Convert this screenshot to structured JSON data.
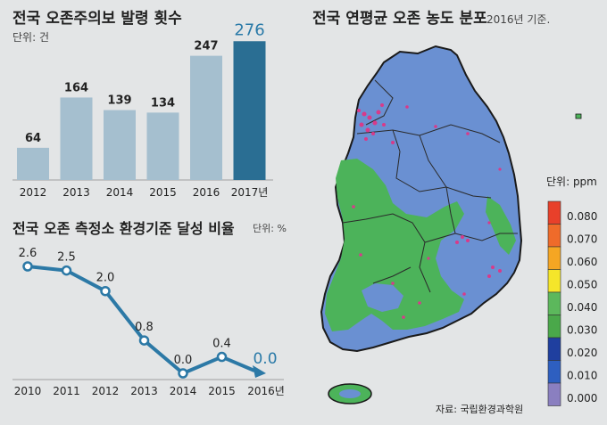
{
  "bar_panel": {
    "title": "전국 오존주의보 발령 횟수",
    "unit": "단위: 건"
  },
  "line_panel": {
    "title": "전국 오존 측정소 환경기준 달성 비율",
    "unit": "단위: %"
  },
  "map_panel": {
    "title": "전국 연평균 오존 농도 분포",
    "subtitle": "2016년 기준.",
    "legend_title": "단위: ppm",
    "legend": [
      {
        "label": "0.080",
        "color": "#e8402a"
      },
      {
        "label": "0.070",
        "color": "#ef6b2a"
      },
      {
        "label": "0.060",
        "color": "#f5a623"
      },
      {
        "label": "0.050",
        "color": "#f5e62a"
      },
      {
        "label": "0.040",
        "color": "#5cb85c"
      },
      {
        "label": "0.030",
        "color": "#4aa84a"
      },
      {
        "label": "0.020",
        "color": "#1f3f9f"
      },
      {
        "label": "0.010",
        "color": "#2e5fc0"
      },
      {
        "label": "0.000",
        "color": "#8a7fc0"
      }
    ],
    "source": "자료: 국립환경과학원"
  },
  "colors": {
    "bar_normal": "#a5bfcf",
    "bar_highlight": "#2a6e93",
    "highlight_text": "#2a7aa8",
    "line": "#2c79a6",
    "map_low": "#6a90d2",
    "map_mid": "#4cb35a"
  },
  "chart_data": [
    {
      "type": "bar",
      "title": "전국 오존주의보 발령 횟수",
      "ylabel": "단위: 건",
      "categories": [
        "2012",
        "2013",
        "2014",
        "2015",
        "2016",
        "2017년"
      ],
      "values": [
        64,
        164,
        139,
        134,
        247,
        276
      ],
      "highlight_index": 5
    },
    {
      "type": "line",
      "title": "전국 오존 측정소 환경기준 달성 비율",
      "ylabel": "단위: %",
      "x": [
        "2010",
        "2011",
        "2012",
        "2013",
        "2014",
        "2015",
        "2016년"
      ],
      "values": [
        2.6,
        2.5,
        2.0,
        0.8,
        0.0,
        0.4,
        0.0
      ],
      "value_labels": [
        "2.6",
        "2.5",
        "2.0",
        "0.8",
        "0.0",
        "0.4",
        "0.0"
      ],
      "highlight_index": 6
    }
  ]
}
